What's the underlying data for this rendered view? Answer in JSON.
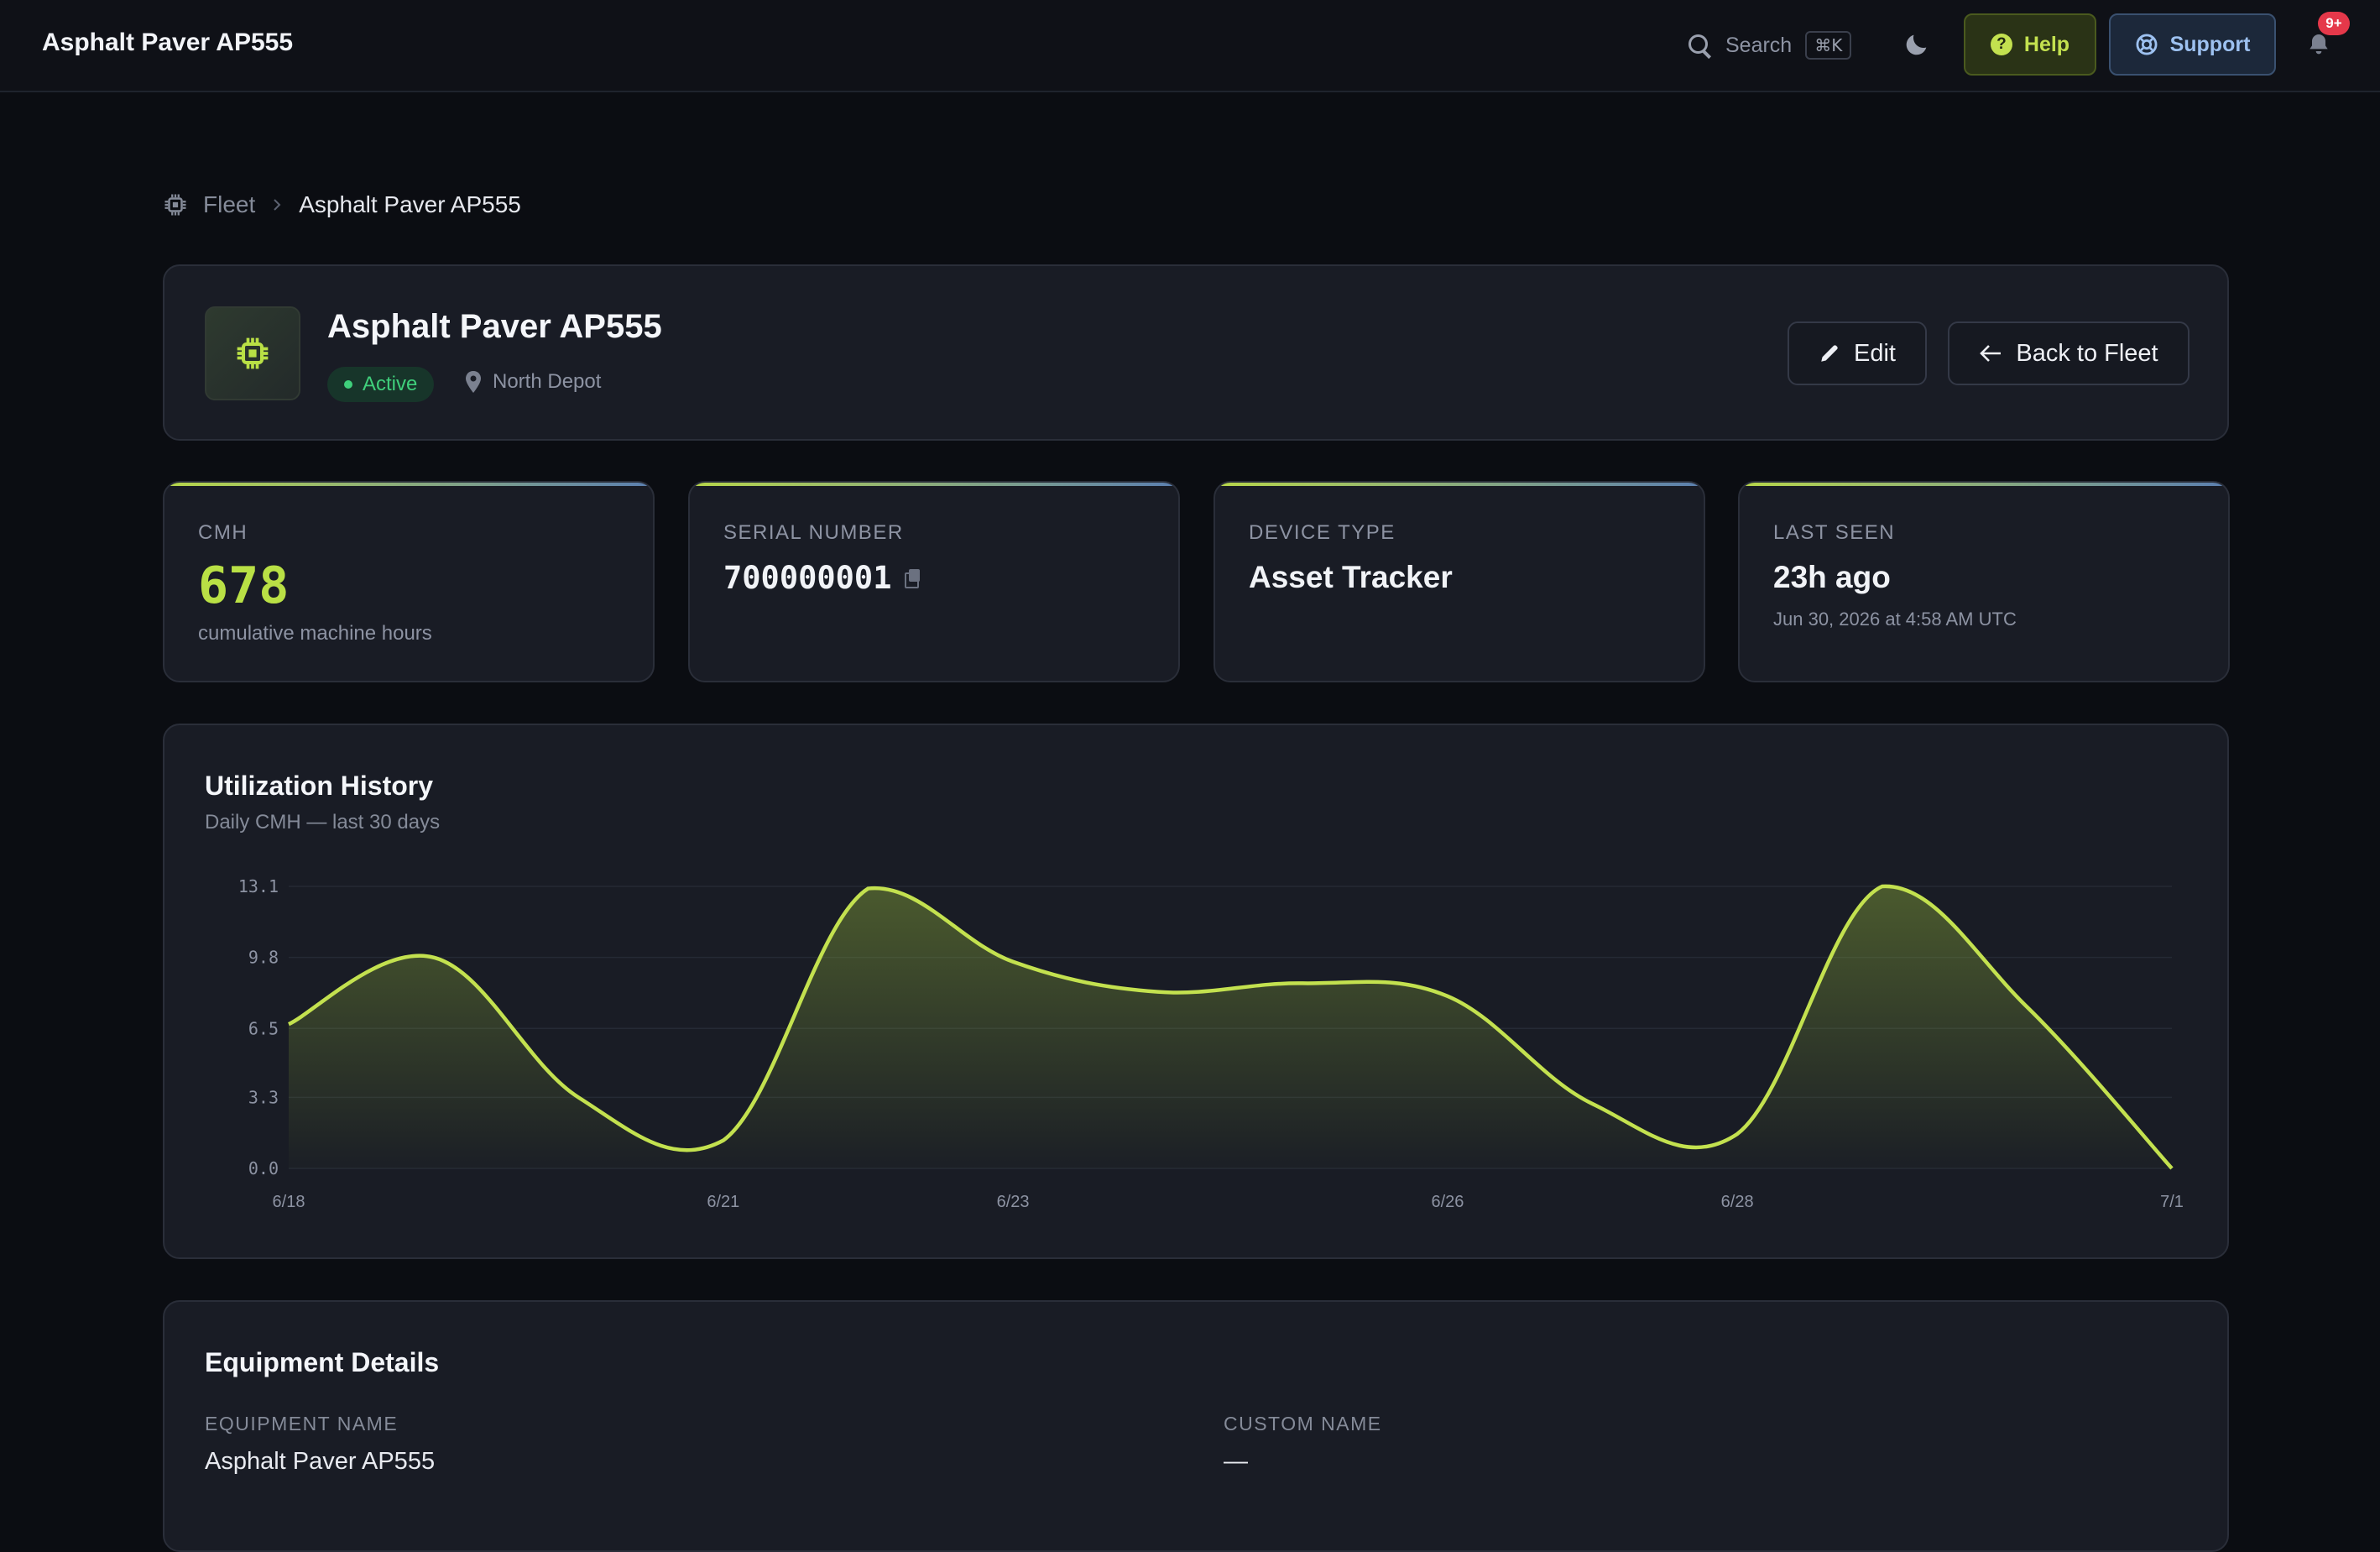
{
  "topbar": {
    "app_title": "Asphalt Paver AP555",
    "search_label": "Search",
    "search_shortcut": "⌘K",
    "help_label": "Help",
    "support_label": "Support",
    "notification_count": "9+"
  },
  "breadcrumb": {
    "root": "Fleet",
    "current": "Asphalt Paver AP555"
  },
  "header": {
    "title": "Asphalt Paver AP555",
    "status": "Active",
    "location": "North Depot",
    "edit_label": "Edit",
    "back_label": "Back to Fleet"
  },
  "stats": {
    "cmh": {
      "label": "CMH",
      "value": "678",
      "sub": "cumulative machine hours"
    },
    "serial": {
      "label": "SERIAL NUMBER",
      "value": "700000001"
    },
    "device_type": {
      "label": "DEVICE TYPE",
      "value": "Asset Tracker"
    },
    "last_seen": {
      "label": "LAST SEEN",
      "value": "23h ago",
      "sub": "Jun 30, 2026 at 4:58 AM UTC"
    }
  },
  "chart": {
    "title": "Utilization History",
    "subtitle": "Daily CMH — last 30 days"
  },
  "chart_data": {
    "type": "area",
    "title": "Utilization History",
    "subtitle": "Daily CMH — last 30 days",
    "x": [
      "6/18",
      "6/19",
      "6/20",
      "6/21",
      "6/22",
      "6/23",
      "6/24",
      "6/25",
      "6/26",
      "6/27",
      "6/28",
      "6/29",
      "6/30",
      "7/1"
    ],
    "x_tick_labels": [
      "6/18",
      "6/21",
      "6/23",
      "6/26",
      "6/28",
      "7/1"
    ],
    "series": [
      {
        "values": [
          6.7,
          9.8,
          3.3,
          1.3,
          13.0,
          9.6,
          8.2,
          8.6,
          8.0,
          3.0,
          1.6,
          13.1,
          7.5,
          0.0
        ]
      }
    ],
    "yticks": [
      "0.0",
      "3.3",
      "6.5",
      "9.8",
      "13.1"
    ],
    "ylim": [
      0,
      13.1
    ],
    "xlabel": "",
    "ylabel": "",
    "grid": true,
    "line_color": "#c3e14f"
  },
  "details": {
    "title": "Equipment Details",
    "fields": [
      {
        "label": "EQUIPMENT NAME",
        "value": "Asphalt Paver AP555"
      },
      {
        "label": "CUSTOM NAME",
        "value": "—"
      }
    ]
  }
}
